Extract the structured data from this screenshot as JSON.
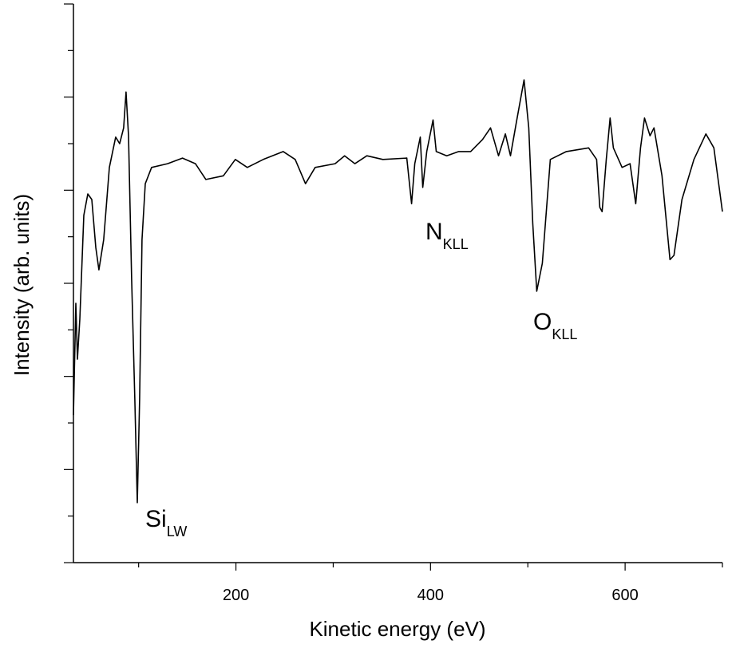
{
  "chart_data": {
    "type": "line",
    "x_label": "Kinetic energy (eV)",
    "y_label": "Intensity (arb. units)",
    "xlim": [
      33,
      700
    ],
    "xticks": [
      200,
      400,
      600
    ],
    "xminorticks": [
      100,
      300,
      500,
      700
    ],
    "ylim": [
      0,
      12
    ],
    "yticks": [
      0,
      1,
      2,
      3,
      4,
      5,
      6,
      7,
      8,
      9,
      10,
      11,
      12
    ],
    "color": "#000000",
    "x": [
      33,
      35.5,
      37.1,
      39.6,
      43.7,
      47.8,
      51.9,
      56.0,
      59.2,
      64.1,
      69.9,
      76.4,
      80.5,
      84.6,
      87.1,
      89.6,
      92.8,
      96.1,
      98.6,
      101.0,
      103.5,
      106.8,
      113.3,
      129.7,
      145.1,
      158.4,
      169.1,
      187.1,
      199.4,
      211.7,
      228.1,
      248.6,
      260.9,
      271.5,
      281.4,
      301.9,
      311.7,
      322.3,
      334.6,
      351.0,
      375.6,
      380.5,
      383.8,
      389.5,
      392.0,
      396.1,
      402.6,
      405.9,
      416.6,
      428.9,
      441.2,
      453.5,
      461.7,
      469.9,
      476.9,
      482.2,
      488.7,
      496.1,
      501.0,
      505.1,
      509.2,
      514.9,
      523.1,
      539.6,
      562.5,
      570.7,
      574.0,
      576.4,
      580.6,
      584.6,
      587.9,
      596.9,
      605.1,
      610.9,
      615.8,
      619.9,
      625.6,
      629.7,
      637.9,
      646.1,
      650.2,
      658.4,
      670.7,
      683.0,
      691.2,
      700
    ],
    "values": [
      3.17,
      5.57,
      4.37,
      5.23,
      7.46,
      7.92,
      7.8,
      6.77,
      6.29,
      6.94,
      8.49,
      9.14,
      9.0,
      9.34,
      10.11,
      9.17,
      6.09,
      3.51,
      1.29,
      3.51,
      6.94,
      8.14,
      8.49,
      8.57,
      8.69,
      8.57,
      8.23,
      8.31,
      8.66,
      8.49,
      8.66,
      8.83,
      8.66,
      8.14,
      8.49,
      8.57,
      8.74,
      8.57,
      8.74,
      8.66,
      8.69,
      7.71,
      8.57,
      9.14,
      8.06,
      8.83,
      9.51,
      8.83,
      8.74,
      8.83,
      8.83,
      9.09,
      9.34,
      8.74,
      9.21,
      8.74,
      9.51,
      10.37,
      9.34,
      7.29,
      5.83,
      6.43,
      8.66,
      8.83,
      8.91,
      8.66,
      7.63,
      7.54,
      8.66,
      9.55,
      8.91,
      8.49,
      8.57,
      7.71,
      8.91,
      9.55,
      9.17,
      9.34,
      8.31,
      6.51,
      6.6,
      7.8,
      8.66,
      9.21,
      8.91,
      7.54
    ],
    "annotations": [
      {
        "text": "Si",
        "sub": "LW"
      },
      {
        "text": "N",
        "sub": "KLL"
      },
      {
        "text": "O",
        "sub": "KLL"
      }
    ]
  }
}
